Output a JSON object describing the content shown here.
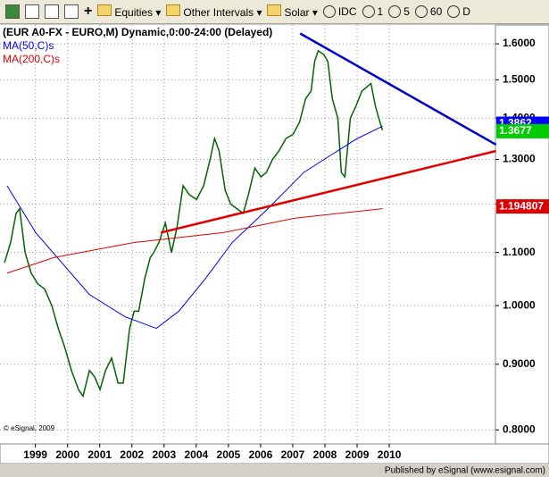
{
  "toolbar": {
    "menus": [
      "Equities",
      "Other Intervals",
      "Solar"
    ],
    "buttons": [
      "IDC",
      "1",
      "5",
      "60",
      "D"
    ]
  },
  "footer": "Published by eSignal (www.esignal.com)",
  "chart_data": {
    "type": "line",
    "title": "(EUR A0-FX - EURO,M) Dynamic,0:00-24:00 (Delayed)",
    "annotation": "© eSignal, 2009",
    "log_scale": true,
    "grid": true,
    "xlim": [
      1997.9,
      2013.3
    ],
    "xticks": [
      1999,
      2000,
      2001,
      2002,
      2003,
      2004,
      2005,
      2006,
      2007,
      2008,
      2009,
      2010
    ],
    "ylim": [
      0.78,
      1.655
    ],
    "yticks": [
      {
        "value": 1.6,
        "label": "1.6000"
      },
      {
        "value": 1.5,
        "label": "1.5000"
      },
      {
        "value": 1.4,
        "label": "1.4000"
      },
      {
        "value": 1.3,
        "label": "1.3000"
      },
      {
        "value": 1.2,
        "label": "1.2000"
      },
      {
        "value": 1.1,
        "label": "1.1000"
      },
      {
        "value": 1.0,
        "label": "1.0000"
      },
      {
        "value": 0.9,
        "label": "0.9000"
      },
      {
        "value": 0.8,
        "label": "0.8000"
      }
    ],
    "series": [
      {
        "name": "(EUR A0-FX - EURO,M) Dynamic,0:00-24:00 (Delayed)",
        "color": "#006400",
        "x": [
          1998.04,
          1998.23,
          1998.4,
          1998.51,
          1998.68,
          1998.87,
          1999.07,
          1999.29,
          1999.51,
          1999.71,
          1999.9,
          2000.12,
          2000.34,
          2000.48,
          2000.68,
          2000.84,
          2001.01,
          2001.18,
          2001.37,
          2001.57,
          2001.73,
          2001.93,
          2002.07,
          2002.21,
          2002.4,
          2002.57,
          2002.68,
          2002.84,
          2003.04,
          2003.23,
          2003.4,
          2003.59,
          2003.79,
          2004.01,
          2004.23,
          2004.43,
          2004.57,
          2004.71,
          2004.9,
          2005.07,
          2005.26,
          2005.46,
          2005.62,
          2005.82,
          2006.01,
          2006.18,
          2006.37,
          2006.57,
          2006.79,
          2007.01,
          2007.21,
          2007.4,
          2007.57,
          2007.68,
          2007.79,
          2007.96,
          2008.09,
          2008.23,
          2008.4,
          2008.51,
          2008.62,
          2008.79,
          2008.96,
          2009.15,
          2009.29,
          2009.43,
          2009.57,
          2009.71,
          2009.79
        ],
        "values": [
          1.08,
          1.12,
          1.18,
          1.19,
          1.1,
          1.06,
          1.04,
          1.03,
          1.0,
          0.96,
          0.93,
          0.89,
          0.86,
          0.85,
          0.89,
          0.88,
          0.86,
          0.89,
          0.91,
          0.87,
          0.87,
          0.96,
          0.99,
          0.99,
          1.05,
          1.09,
          1.1,
          1.12,
          1.16,
          1.1,
          1.15,
          1.24,
          1.22,
          1.21,
          1.24,
          1.3,
          1.35,
          1.32,
          1.23,
          1.2,
          1.19,
          1.18,
          1.22,
          1.28,
          1.26,
          1.27,
          1.3,
          1.32,
          1.35,
          1.36,
          1.39,
          1.45,
          1.47,
          1.55,
          1.58,
          1.57,
          1.55,
          1.45,
          1.4,
          1.27,
          1.26,
          1.4,
          1.43,
          1.47,
          1.48,
          1.49,
          1.43,
          1.39,
          1.37
        ]
      },
      {
        "name": "MA(50,C)s",
        "color": "#0000ff",
        "x": [
          1998.12,
          1999.01,
          2000.68,
          2001.79,
          2002.76,
          2003.46,
          2004.29,
          2005.12,
          2006.23,
          2007.34,
          2008.18,
          2009.01,
          2009.79
        ],
        "values": [
          1.24,
          1.14,
          1.02,
          0.98,
          0.96,
          0.99,
          1.05,
          1.12,
          1.19,
          1.27,
          1.31,
          1.35,
          1.38
        ]
      },
      {
        "name": "MA(200,C)s",
        "color": "#e00000",
        "x": [
          1998.12,
          1999.57,
          2002.07,
          2004.84,
          2007.07,
          2009.79
        ],
        "values": [
          1.06,
          1.09,
          1.12,
          1.14,
          1.17,
          1.19
        ]
      }
    ],
    "trend_lines": [
      {
        "color": "#0000cc",
        "x": [
          2007.23,
          2013.32
        ],
        "values": [
          1.63,
          1.335
        ]
      },
      {
        "color": "#e00000",
        "x": [
          2002.9,
          2013.32
        ],
        "values": [
          1.14,
          1.32
        ]
      }
    ],
    "price_markers": [
      {
        "value": 1.3862,
        "color": "#0000ff"
      },
      {
        "value": 1.3677,
        "color": "#00cc00"
      },
      {
        "value": 1.194807,
        "color": "#dd0000"
      }
    ]
  }
}
